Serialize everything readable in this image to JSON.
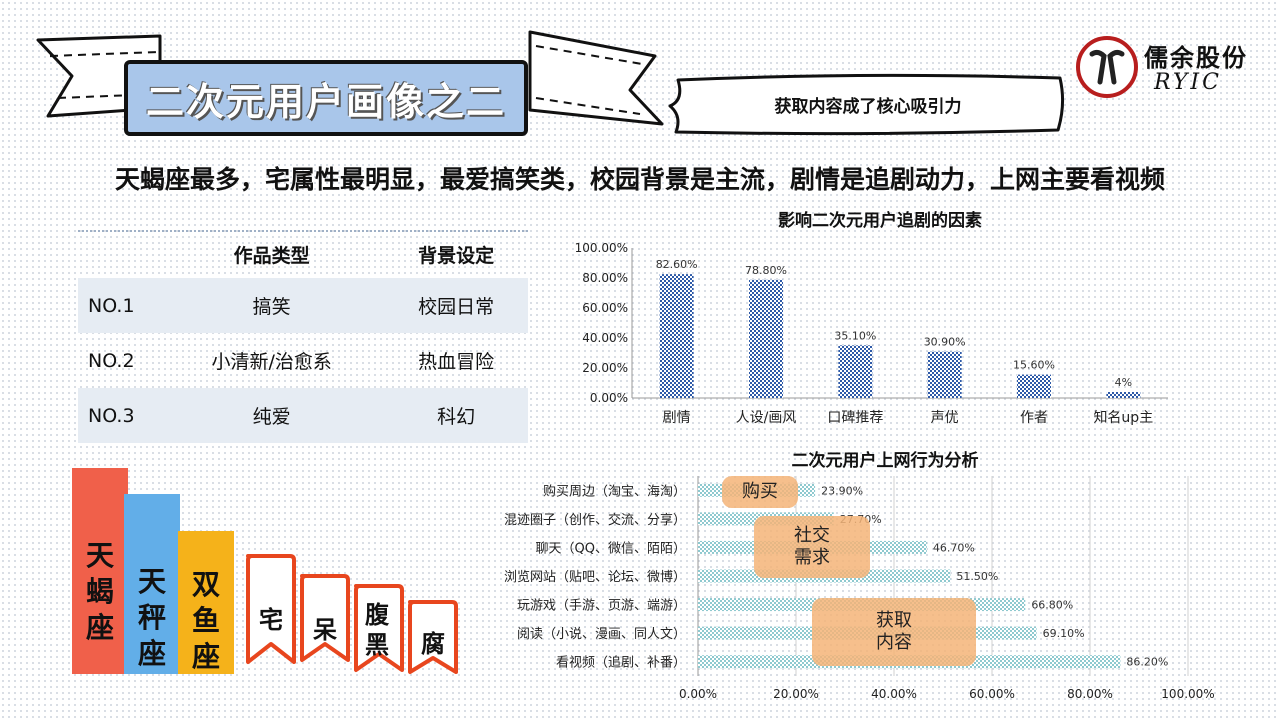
{
  "header": {
    "title": "二次元用户画像之二",
    "callout": "获取内容成了核心吸引力",
    "logo_cn": "儒余股份",
    "logo_en": "RYIC"
  },
  "headline": "天蝎座最多，宅属性最明显，最爱搞笑类，校园背景是主流，剧情是追剧动力，上网主要看视频",
  "rank_table": {
    "col_type": "作品类型",
    "col_bg": "背景设定",
    "rows": [
      {
        "no": "NO.1",
        "type": "搞笑",
        "bg": "校园日常"
      },
      {
        "no": "NO.2",
        "type": "小清新/治愈系",
        "bg": "热血冒险"
      },
      {
        "no": "NO.3",
        "type": "纯爱",
        "bg": "科幻"
      }
    ]
  },
  "zodiac": [
    {
      "label": "天蝎座",
      "value": 3,
      "color": "#f0604a"
    },
    {
      "label": "天秤座",
      "value": 2,
      "color": "#62aee8"
    },
    {
      "label": "双鱼座",
      "value": 1,
      "color": "#f5b21a"
    }
  ],
  "tags": [
    "宅",
    "呆",
    "腹黑",
    "腐"
  ],
  "bubbles": [
    "购买",
    "社交\n需求",
    "获取\n内容"
  ],
  "chart_data": [
    {
      "type": "bar",
      "title": "影响二次元用户追剧的因素",
      "categories": [
        "剧情",
        "人设/画风",
        "口碑推荐",
        "声优",
        "作者",
        "知名up主"
      ],
      "values": [
        82.6,
        78.8,
        35.1,
        30.9,
        15.6,
        4
      ],
      "data_labels": [
        "82.60%",
        "78.80%",
        "35.10%",
        "30.90%",
        "15.60%",
        "4%"
      ],
      "ylim": [
        0,
        100
      ],
      "y_ticks": [
        "0.00%",
        "20.00%",
        "40.00%",
        "60.00%",
        "80.00%",
        "100.00%"
      ],
      "grid": false,
      "color": "#2e5aa8"
    },
    {
      "type": "bar",
      "orientation": "horizontal",
      "title": "二次元用户上网行为分析",
      "categories": [
        "购买周边（淘宝、海淘）",
        "混迹圈子（创作、交流、分享）",
        "聊天（QQ、微信、陌陌）",
        "浏览网站（贴吧、论坛、微博）",
        "玩游戏（手游、页游、端游）",
        "阅读（小说、漫画、同人文）",
        "看视频（追剧、补番）"
      ],
      "values": [
        23.9,
        27.7,
        46.7,
        51.5,
        66.8,
        69.1,
        86.2
      ],
      "data_labels": [
        "23.90%",
        "27.70%",
        "46.70%",
        "51.50%",
        "66.80%",
        "69.10%",
        "86.20%"
      ],
      "xlim": [
        0,
        100
      ],
      "x_ticks": [
        "0.00%",
        "20.00%",
        "40.00%",
        "60.00%",
        "80.00%",
        "100.00%"
      ],
      "grid": true,
      "color": "#8ec9cf"
    }
  ]
}
